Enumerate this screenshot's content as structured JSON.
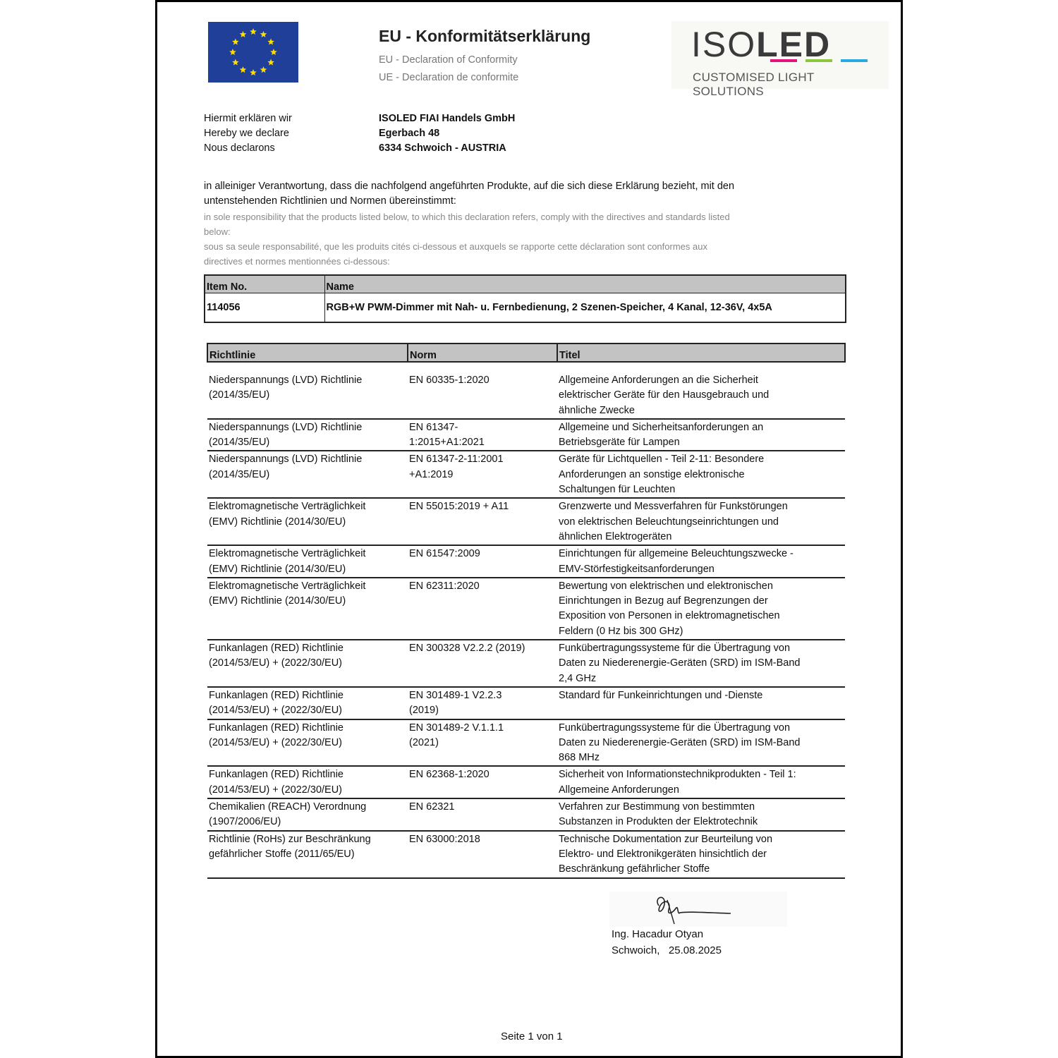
{
  "header": {
    "title": "EU - Konformitätserklärung",
    "subtitle_en": "EU - Declaration of Conformity",
    "subtitle_fr": "UE - Declaration de conformite"
  },
  "logo": {
    "brand": "ISOLED",
    "tagline": "CUSTOMISED LIGHT SOLUTIONS",
    "colors": [
      "#e5127d",
      "#8cc63f",
      "#27aae1"
    ]
  },
  "declarant": {
    "labels": [
      "Hiermit erklären wir",
      "Hereby we declare",
      "Nous declarons"
    ],
    "company": "ISOLED FIAI Handels GmbH",
    "street": "Egerbach 48",
    "city": "6334 Schwoich - AUSTRIA"
  },
  "statement": {
    "de": "in alleiniger Verantwortung, dass die nachfolgend angeführten Produkte, auf die sich diese Erklärung bezieht, mit den untenstehenden Richtlinien und Normen übereinstimmt:",
    "en": "in sole responsibility that the products listed below, to which this declaration refers, comply with the directives and standards listed below:",
    "fr": "sous sa seule responsabilité, que les produits cités ci-dessous et auxquels se rapporte cette déclaration sont conformes aux directives et normes mentionnées ci-dessous:"
  },
  "product_table": {
    "headers": [
      "Item No.",
      "Name"
    ],
    "item_no": "114056",
    "name": "RGB+W PWM-Dimmer mit Nah- u. Fernbedienung, 2 Szenen-Speicher, 4 Kanal, 12-36V, 4x5A"
  },
  "standards_table": {
    "headers": [
      "Richtlinie",
      "Norm",
      "Titel"
    ],
    "rows": [
      {
        "richtlinie": "Niederspannungs (LVD) Richtlinie (2014/35/EU)",
        "norm": "EN 60335-1:2020",
        "titel": "Allgemeine Anforderungen an die Sicherheit elektrischer Geräte für den Hausgebrauch und ähnliche Zwecke"
      },
      {
        "richtlinie": "Niederspannungs (LVD) Richtlinie (2014/35/EU)",
        "norm": "EN 61347-1:2015+A1:2021",
        "titel": "Allgemeine und Sicherheitsanforderungen an Betriebsgeräte für Lampen"
      },
      {
        "richtlinie": "Niederspannungs (LVD) Richtlinie (2014/35/EU)",
        "norm": "EN 61347-2-11:2001 +A1:2019",
        "titel": "Geräte für Lichtquellen - Teil 2-11: Besondere Anforderungen an sonstige elektronische Schaltungen für Leuchten"
      },
      {
        "richtlinie": "Elektromagnetische Verträglichkeit (EMV) Richtlinie (2014/30/EU)",
        "norm": "EN 55015:2019 + A11",
        "titel": "Grenzwerte und Messverfahren für Funkstörungen von elektrischen Beleuchtungseinrichtungen und ähnlichen Elektrogeräten"
      },
      {
        "richtlinie": "Elektromagnetische Verträglichkeit (EMV) Richtlinie (2014/30/EU)",
        "norm": "EN 61547:2009",
        "titel": "Einrichtungen für allgemeine Beleuchtungszwecke - EMV-Störfestigkeitsanforderungen"
      },
      {
        "richtlinie": "Elektromagnetische Verträglichkeit (EMV) Richtlinie (2014/30/EU)",
        "norm": "EN 62311:2020",
        "titel": "Bewertung von elektrischen und elektronischen Einrichtungen in Bezug auf Begrenzungen der Exposition von Personen in elektromagnetischen Feldern (0 Hz bis 300 GHz)"
      },
      {
        "richtlinie": "Funkanlagen (RED) Richtlinie (2014/53/EU) + (2022/30/EU)",
        "norm": "EN 300328 V2.2.2 (2019)",
        "titel": "Funkübertragungssysteme für die Übertragung von Daten zu Niederenergie-Geräten (SRD) im ISM-Band 2,4 GHz"
      },
      {
        "richtlinie": "Funkanlagen (RED) Richtlinie (2014/53/EU) + (2022/30/EU)",
        "norm": "EN 301489-1 V2.2.3 (2019)",
        "titel": "Standard für Funkeinrichtungen und -Dienste"
      },
      {
        "richtlinie": "Funkanlagen (RED) Richtlinie (2014/53/EU) + (2022/30/EU)",
        "norm": "EN 301489-2 V.1.1.1 (2021)",
        "titel": "Funkübertragungssysteme für die Übertragung von Daten zu Niederenergie-Geräten (SRD) im ISM-Band 868 MHz"
      },
      {
        "richtlinie": "Funkanlagen (RED) Richtlinie (2014/53/EU) + (2022/30/EU)",
        "norm": "EN 62368-1:2020",
        "titel": "Sicherheit von Informationstechnikprodukten - Teil 1: Allgemeine Anforderungen"
      },
      {
        "richtlinie": "Chemikalien (REACH) Verordnung (1907/2006/EU)",
        "norm": "EN 62321",
        "titel": "Verfahren zur Bestimmung von bestimmten Substanzen in Produkten der Elektrotechnik"
      },
      {
        "richtlinie": "Richtlinie (RoHs) zur Beschränkung gefährlicher Stoffe (2011/65/EU)",
        "norm": "EN 63000:2018",
        "titel": "Technische Dokumentation zur Beurteilung von Elektro- und Elektronikgeräten hinsichtlich der Beschränkung gefährlicher Stoffe"
      }
    ]
  },
  "signature": {
    "name": "Ing. Hacadur Otyan",
    "place": "Schwoich,",
    "date": "25.08.2025"
  },
  "footer": {
    "page": "Seite 1 von 1"
  }
}
